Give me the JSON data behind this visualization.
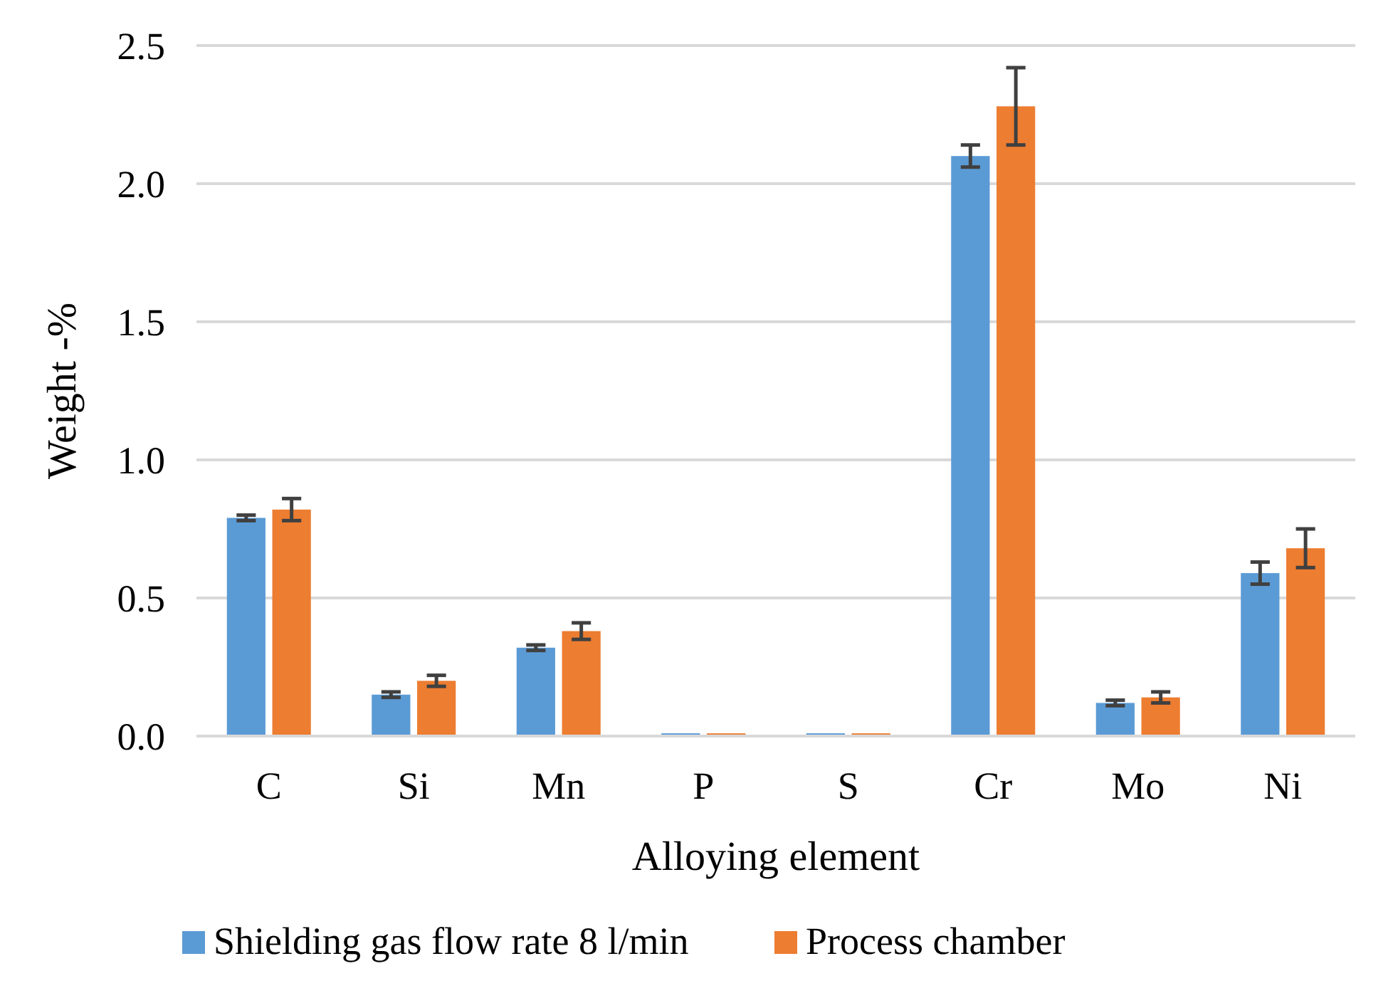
{
  "chart_data": {
    "type": "bar",
    "xlabel": "Alloying element",
    "ylabel": "Weight -%",
    "categories": [
      "C",
      "Si",
      "Mn",
      "P",
      "S",
      "Cr",
      "Mo",
      "Ni"
    ],
    "series": [
      {
        "name": "Shielding gas flow rate 8 l/min",
        "color": "#5b9bd5",
        "values": [
          0.79,
          0.15,
          0.32,
          0.01,
          0.01,
          2.1,
          0.12,
          0.59
        ],
        "errors": [
          0.01,
          0.01,
          0.01,
          null,
          null,
          0.04,
          0.01,
          0.04
        ]
      },
      {
        "name": "Process chamber",
        "color": "#ed7d31",
        "values": [
          0.82,
          0.2,
          0.38,
          0.01,
          0.01,
          2.28,
          0.14,
          0.68
        ],
        "errors": [
          0.04,
          0.02,
          0.03,
          null,
          null,
          0.14,
          0.02,
          0.07
        ]
      }
    ],
    "ylim": [
      0,
      2.5
    ],
    "yticks": [
      {
        "value": 0,
        "label": "0.0"
      },
      {
        "value": 0.5,
        "label": "0.5"
      },
      {
        "value": 1,
        "label": "1.0"
      },
      {
        "value": 1.5,
        "label": "1.5"
      },
      {
        "value": 2,
        "label": "2.0"
      },
      {
        "value": 2.5,
        "label": "2.5"
      }
    ],
    "grid": "y",
    "legend": "bottom"
  }
}
